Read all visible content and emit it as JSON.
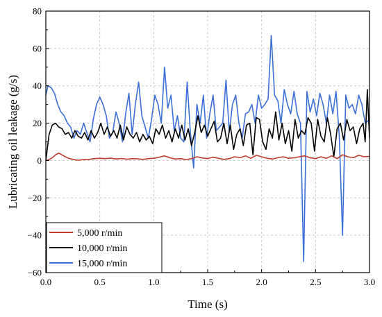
{
  "chart_data": {
    "type": "line",
    "title": "",
    "xlabel": "Time (s)",
    "ylabel": "Lubricating oil leakage  (g/s)",
    "xlim": [
      0,
      3.0
    ],
    "ylim": [
      -60,
      80
    ],
    "grid": true,
    "legend_position": "bottom-left",
    "xticks": [
      0.0,
      0.5,
      1.0,
      1.5,
      2.0,
      2.5,
      3.0
    ],
    "xtick_labels": [
      "0.0",
      "0.5",
      "1.0",
      "1.5",
      "2.0",
      "2.5",
      "3.0"
    ],
    "yticks": [
      -60,
      -40,
      -20,
      0,
      20,
      40,
      60,
      80
    ],
    "ytick_labels": [
      "−60",
      "−40",
      "−20",
      "0",
      "20",
      "40",
      "60",
      "80"
    ],
    "series": [
      {
        "name": "5,000 r/min",
        "color": "#c0392b",
        "x": [
          0.0,
          0.03,
          0.06,
          0.09,
          0.12,
          0.15,
          0.18,
          0.21,
          0.24,
          0.27,
          0.3,
          0.35,
          0.4,
          0.45,
          0.5,
          0.55,
          0.6,
          0.65,
          0.7,
          0.75,
          0.8,
          0.85,
          0.9,
          0.95,
          1.0,
          1.05,
          1.1,
          1.15,
          1.2,
          1.25,
          1.3,
          1.35,
          1.4,
          1.45,
          1.5,
          1.55,
          1.6,
          1.65,
          1.7,
          1.75,
          1.8,
          1.85,
          1.9,
          1.95,
          2.0,
          2.05,
          2.1,
          2.15,
          2.2,
          2.25,
          2.3,
          2.35,
          2.4,
          2.45,
          2.5,
          2.55,
          2.6,
          2.65,
          2.7,
          2.75,
          2.8,
          2.85,
          2.9,
          2.95,
          3.0
        ],
        "values": [
          0,
          0.5,
          1.5,
          3.0,
          4.0,
          3.0,
          2.0,
          1.2,
          0.8,
          0.4,
          0.2,
          0.5,
          0.6,
          1.0,
          1.2,
          1.0,
          1.3,
          0.8,
          1.1,
          0.7,
          1.0,
          0.9,
          0.6,
          1.0,
          1.2,
          1.8,
          2.5,
          1.5,
          0.8,
          1.0,
          0.5,
          1.0,
          2.0,
          1.4,
          1.0,
          1.8,
          1.2,
          0.6,
          1.0,
          2.0,
          1.5,
          2.5,
          1.2,
          2.8,
          2.0,
          1.2,
          0.8,
          1.5,
          2.0,
          1.2,
          1.5,
          2.0,
          2.5,
          1.5,
          1.0,
          2.0,
          1.2,
          2.5,
          1.0,
          3.0,
          2.0,
          1.5,
          2.8,
          2.0,
          2.2
        ]
      },
      {
        "name": "10,000 r/min",
        "color": "#000000",
        "x": [
          0.0,
          0.03,
          0.06,
          0.09,
          0.12,
          0.15,
          0.18,
          0.21,
          0.24,
          0.27,
          0.3,
          0.33,
          0.36,
          0.39,
          0.42,
          0.45,
          0.48,
          0.51,
          0.54,
          0.57,
          0.6,
          0.63,
          0.66,
          0.69,
          0.72,
          0.75,
          0.78,
          0.81,
          0.84,
          0.87,
          0.9,
          0.93,
          0.96,
          0.99,
          1.02,
          1.05,
          1.08,
          1.11,
          1.14,
          1.17,
          1.2,
          1.23,
          1.26,
          1.29,
          1.32,
          1.35,
          1.38,
          1.41,
          1.44,
          1.47,
          1.5,
          1.53,
          1.56,
          1.59,
          1.62,
          1.65,
          1.68,
          1.71,
          1.74,
          1.77,
          1.8,
          1.83,
          1.86,
          1.89,
          1.92,
          1.95,
          1.98,
          2.01,
          2.04,
          2.07,
          2.1,
          2.13,
          2.16,
          2.19,
          2.22,
          2.25,
          2.28,
          2.31,
          2.34,
          2.37,
          2.4,
          2.43,
          2.46,
          2.49,
          2.52,
          2.55,
          2.58,
          2.61,
          2.64,
          2.67,
          2.7,
          2.73,
          2.76,
          2.79,
          2.82,
          2.85,
          2.88,
          2.91,
          2.94,
          2.96,
          2.98,
          3.0
        ],
        "values": [
          0,
          14,
          19,
          20,
          18,
          17,
          14,
          15,
          12,
          16,
          13,
          12,
          15,
          11,
          16,
          12,
          15,
          20,
          14,
          18,
          13,
          16,
          12,
          19,
          11,
          18,
          14,
          12,
          15,
          10,
          14,
          11,
          13,
          9,
          17,
          14,
          19,
          12,
          16,
          10,
          17,
          12,
          19,
          11,
          17,
          8,
          15,
          24,
          15,
          19,
          13,
          17,
          21,
          10,
          12,
          20,
          9,
          19,
          6,
          14,
          17,
          8,
          19,
          20,
          3,
          23,
          22,
          10,
          6,
          17,
          12,
          26,
          11,
          20,
          9,
          16,
          5,
          22,
          12,
          16,
          14,
          23,
          20,
          5,
          22,
          13,
          10,
          23,
          14,
          2,
          17,
          20,
          11,
          22,
          16,
          18,
          9,
          17,
          20,
          10,
          38,
          12
        ]
      },
      {
        "name": "15,000 r/min",
        "color": "#3a6fd8",
        "x": [
          0.0,
          0.02,
          0.05,
          0.08,
          0.11,
          0.14,
          0.17,
          0.2,
          0.23,
          0.26,
          0.29,
          0.32,
          0.35,
          0.38,
          0.41,
          0.44,
          0.47,
          0.5,
          0.53,
          0.56,
          0.59,
          0.62,
          0.65,
          0.68,
          0.71,
          0.74,
          0.77,
          0.8,
          0.83,
          0.86,
          0.89,
          0.92,
          0.95,
          0.98,
          1.01,
          1.04,
          1.07,
          1.1,
          1.13,
          1.16,
          1.19,
          1.22,
          1.25,
          1.28,
          1.31,
          1.34,
          1.37,
          1.4,
          1.43,
          1.46,
          1.49,
          1.52,
          1.55,
          1.58,
          1.61,
          1.64,
          1.67,
          1.7,
          1.73,
          1.76,
          1.79,
          1.82,
          1.85,
          1.88,
          1.91,
          1.94,
          1.97,
          2.0,
          2.03,
          2.06,
          2.09,
          2.12,
          2.15,
          2.18,
          2.21,
          2.24,
          2.27,
          2.3,
          2.33,
          2.36,
          2.39,
          2.42,
          2.45,
          2.48,
          2.51,
          2.54,
          2.57,
          2.6,
          2.63,
          2.66,
          2.69,
          2.72,
          2.75,
          2.78,
          2.81,
          2.84,
          2.87,
          2.9,
          2.93,
          2.96,
          3.0
        ],
        "values": [
          35,
          40,
          39,
          36,
          30,
          26,
          24,
          20,
          18,
          12,
          16,
          14,
          20,
          15,
          10,
          22,
          30,
          34,
          30,
          24,
          12,
          15,
          26,
          20,
          10,
          25,
          36,
          14,
          30,
          42,
          24,
          18,
          12,
          22,
          35,
          30,
          20,
          50,
          28,
          35,
          16,
          24,
          12,
          10,
          42,
          15,
          -4,
          30,
          20,
          35,
          12,
          25,
          35,
          16,
          18,
          20,
          43,
          15,
          30,
          35,
          20,
          12,
          25,
          26,
          30,
          20,
          35,
          28,
          30,
          33,
          67,
          35,
          32,
          20,
          38,
          30,
          25,
          37,
          25,
          20,
          -54,
          37,
          26,
          33,
          24,
          36,
          30,
          20,
          35,
          25,
          37,
          13,
          -40,
          35,
          28,
          30,
          25,
          35,
          30,
          20,
          22
        ]
      }
    ]
  }
}
